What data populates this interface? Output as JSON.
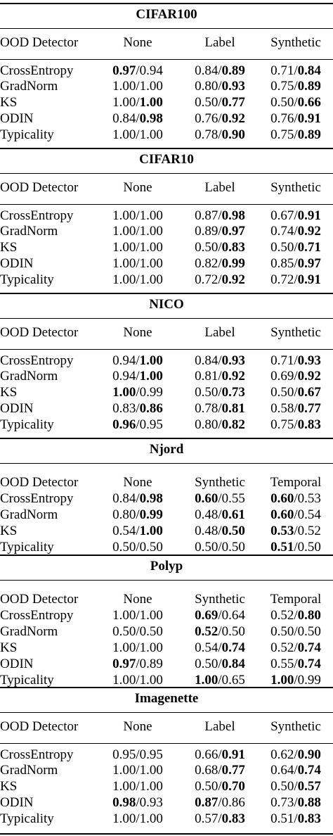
{
  "tables": [
    {
      "title": "CIFAR100",
      "headers": [
        "OOD Detector",
        "None",
        "Label",
        "Synthetic"
      ],
      "rows": [
        {
          "name": "CrossEntropy",
          "cells": [
            [
              "0.97",
              "0.94",
              0
            ],
            [
              "0.84",
              "0.89",
              1
            ],
            [
              "0.71",
              "0.84",
              1
            ]
          ]
        },
        {
          "name": "GradNorm",
          "cells": [
            [
              "1.00",
              "1.00",
              -1
            ],
            [
              "0.80",
              "0.93",
              1
            ],
            [
              "0.75",
              "0.89",
              1
            ]
          ]
        },
        {
          "name": "KS",
          "cells": [
            [
              "1.00",
              "1.00",
              1
            ],
            [
              "0.50",
              "0.77",
              1
            ],
            [
              "0.50",
              "0.66",
              1
            ]
          ]
        },
        {
          "name": "ODIN",
          "cells": [
            [
              "0.84",
              "0.98",
              1
            ],
            [
              "0.76",
              "0.92",
              1
            ],
            [
              "0.76",
              "0.91",
              1
            ]
          ]
        },
        {
          "name": "Typicality",
          "cells": [
            [
              "1.00",
              "1.00",
              -1
            ],
            [
              "0.78",
              "0.90",
              1
            ],
            [
              "0.75",
              "0.89",
              1
            ]
          ]
        }
      ]
    },
    {
      "title": "CIFAR10",
      "headers": [
        "OOD Detector",
        "None",
        "Label",
        "Synthetic"
      ],
      "rows": [
        {
          "name": "CrossEntropy",
          "cells": [
            [
              "1.00",
              "1.00",
              -1
            ],
            [
              "0.87",
              "0.98",
              1
            ],
            [
              "0.67",
              "0.91",
              1
            ]
          ]
        },
        {
          "name": "GradNorm",
          "cells": [
            [
              "1.00",
              "1.00",
              -1
            ],
            [
              "0.89",
              "0.97",
              1
            ],
            [
              "0.74",
              "0.92",
              1
            ]
          ]
        },
        {
          "name": "KS",
          "cells": [
            [
              "1.00",
              "1.00",
              -1
            ],
            [
              "0.50",
              "0.83",
              1
            ],
            [
              "0.50",
              "0.71",
              1
            ]
          ]
        },
        {
          "name": "ODIN",
          "cells": [
            [
              "1.00",
              "1.00",
              -1
            ],
            [
              "0.82",
              "0.99",
              1
            ],
            [
              "0.85",
              "0.97",
              1
            ]
          ]
        },
        {
          "name": "Typicality",
          "cells": [
            [
              "1.00",
              "1.00",
              -1
            ],
            [
              "0.72",
              "0.92",
              1
            ],
            [
              "0.72",
              "0.91",
              1
            ]
          ]
        }
      ]
    },
    {
      "title": "NICO",
      "headers": [
        "OOD Detector",
        "None",
        "Label",
        "Synthetic"
      ],
      "rows": [
        {
          "name": "CrossEntropy",
          "cells": [
            [
              "0.94",
              "1.00",
              1
            ],
            [
              "0.84",
              "0.93",
              1
            ],
            [
              "0.71",
              "0.93",
              1
            ]
          ]
        },
        {
          "name": "GradNorm",
          "cells": [
            [
              "0.94",
              "1.00",
              1
            ],
            [
              "0.81",
              "0.92",
              1
            ],
            [
              "0.69",
              "0.92",
              1
            ]
          ]
        },
        {
          "name": "KS",
          "cells": [
            [
              "1.00",
              "0.99",
              0
            ],
            [
              "0.50",
              "0.73",
              1
            ],
            [
              "0.50",
              "0.67",
              1
            ]
          ]
        },
        {
          "name": "ODIN",
          "cells": [
            [
              "0.83",
              "0.86",
              1
            ],
            [
              "0.78",
              "0.81",
              1
            ],
            [
              "0.58",
              "0.77",
              1
            ]
          ]
        },
        {
          "name": "Typicality",
          "cells": [
            [
              "0.96",
              "0.95",
              0
            ],
            [
              "0.80",
              "0.82",
              1
            ],
            [
              "0.75",
              "0.83",
              1
            ]
          ]
        }
      ]
    },
    {
      "title": "Njord",
      "headers": [
        "OOD Detector",
        "None",
        "Synthetic",
        "Temporal"
      ],
      "rows": [
        {
          "name": "CrossEntropy",
          "cells": [
            [
              "0.84",
              "0.98",
              1
            ],
            [
              "0.60",
              "0.55",
              0
            ],
            [
              "0.60",
              "0.53",
              0
            ]
          ]
        },
        {
          "name": "GradNorm",
          "cells": [
            [
              "0.80",
              "0.99",
              1
            ],
            [
              "0.48",
              "0.61",
              1
            ],
            [
              "0.60",
              "0.54",
              0
            ]
          ]
        },
        {
          "name": "KS",
          "cells": [
            [
              "0.54",
              "1.00",
              1
            ],
            [
              "0.48",
              "0.50",
              1
            ],
            [
              "0.53",
              "0.52",
              0
            ]
          ]
        },
        {
          "name": "Typicality",
          "cells": [
            [
              "0.50",
              "0.50",
              -1
            ],
            [
              "0.50",
              "0.50",
              -1
            ],
            [
              "0.51",
              "0.50",
              0
            ]
          ]
        }
      ]
    },
    {
      "title": "Polyp",
      "headers": [
        "OOD Detector",
        "None",
        "Synthetic",
        "Temporal"
      ],
      "rows": [
        {
          "name": "CrossEntropy",
          "cells": [
            [
              "1.00",
              "1.00",
              -1
            ],
            [
              "0.69",
              "0.64",
              0
            ],
            [
              "0.52",
              "0.80",
              1
            ]
          ]
        },
        {
          "name": "GradNorm",
          "cells": [
            [
              "0.50",
              "0.50",
              -1
            ],
            [
              "0.52",
              "0.50",
              0
            ],
            [
              "0.50",
              "0.50",
              -1
            ]
          ]
        },
        {
          "name": "KS",
          "cells": [
            [
              "1.00",
              "1.00",
              -1
            ],
            [
              "0.54",
              "0.74",
              1
            ],
            [
              "0.52",
              "0.74",
              1
            ]
          ]
        },
        {
          "name": "ODIN",
          "cells": [
            [
              "0.97",
              "0.89",
              0
            ],
            [
              "0.50",
              "0.84",
              1
            ],
            [
              "0.55",
              "0.74",
              1
            ]
          ]
        },
        {
          "name": "Typicality",
          "cells": [
            [
              "1.00",
              "1.00",
              -1
            ],
            [
              "1.00",
              "0.65",
              0
            ],
            [
              "1.00",
              "0.99",
              0
            ]
          ]
        }
      ]
    },
    {
      "title": "Imagenette",
      "headers": [
        "OOD Detector",
        "None",
        "Label",
        "Synthetic"
      ],
      "rows": [
        {
          "name": "CrossEntropy",
          "cells": [
            [
              "0.95",
              "0.95",
              -1
            ],
            [
              "0.66",
              "0.91",
              1
            ],
            [
              "0.62",
              "0.90",
              1
            ]
          ]
        },
        {
          "name": "GradNorm",
          "cells": [
            [
              "1.00",
              "1.00",
              -1
            ],
            [
              "0.68",
              "0.77",
              1
            ],
            [
              "0.64",
              "0.74",
              1
            ]
          ]
        },
        {
          "name": "KS",
          "cells": [
            [
              "1.00",
              "1.00",
              -1
            ],
            [
              "0.50",
              "0.70",
              1
            ],
            [
              "0.50",
              "0.57",
              1
            ]
          ]
        },
        {
          "name": "ODIN",
          "cells": [
            [
              "0.98",
              "0.93",
              0
            ],
            [
              "0.87",
              "0.86",
              0
            ],
            [
              "0.73",
              "0.88",
              1
            ]
          ]
        },
        {
          "name": "Typicality",
          "cells": [
            [
              "1.00",
              "1.00",
              -1
            ],
            [
              "0.57",
              "0.83",
              1
            ],
            [
              "0.51",
              "0.83",
              1
            ]
          ]
        }
      ]
    }
  ]
}
